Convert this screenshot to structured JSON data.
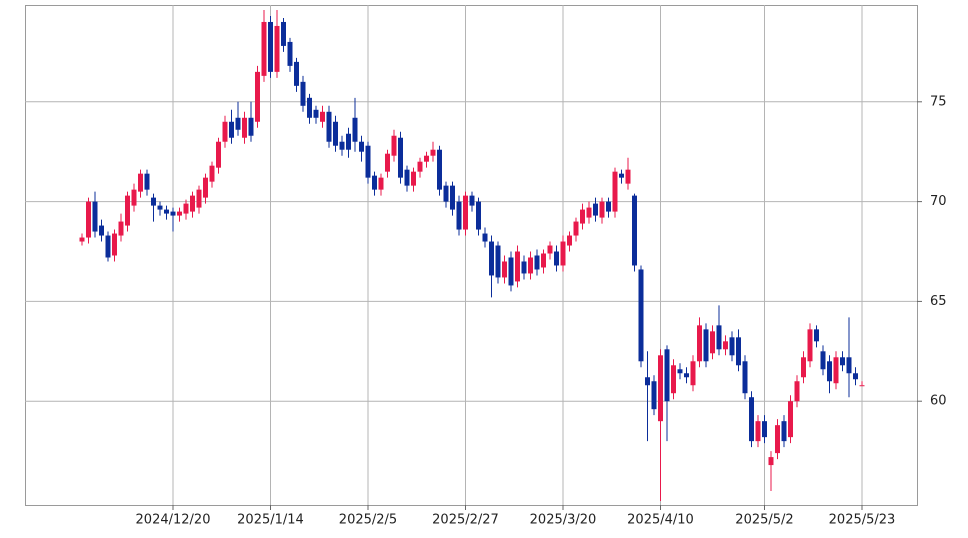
{
  "chart_data": {
    "type": "candlestick",
    "categories": [
      null,
      null,
      null,
      null,
      null,
      null,
      null,
      null,
      null,
      null,
      null,
      null,
      null,
      null,
      "2024/12/20",
      null,
      null,
      null,
      null,
      null,
      null,
      null,
      null,
      null,
      null,
      null,
      null,
      null,
      null,
      "2025/1/14",
      null,
      null,
      null,
      null,
      null,
      null,
      null,
      null,
      null,
      null,
      null,
      null,
      null,
      null,
      "2025/2/5",
      null,
      null,
      null,
      null,
      null,
      null,
      null,
      null,
      null,
      null,
      null,
      null,
      null,
      null,
      "2025/2/27",
      null,
      null,
      null,
      null,
      null,
      null,
      null,
      null,
      null,
      null,
      null,
      null,
      null,
      null,
      "2025/3/20",
      null,
      null,
      null,
      null,
      null,
      null,
      null,
      null,
      null,
      null,
      null,
      null,
      null,
      null,
      "2025/4/10",
      null,
      null,
      null,
      null,
      null,
      null,
      null,
      null,
      null,
      null,
      null,
      null,
      null,
      null,
      null,
      "2025/5/2",
      null,
      null,
      null,
      null,
      null,
      null,
      null,
      null,
      null,
      null,
      null,
      null,
      null,
      null,
      "2025/5/23"
    ],
    "open": [
      68.0,
      68.2,
      70.0,
      68.8,
      68.3,
      67.3,
      68.3,
      68.8,
      69.8,
      70.5,
      71.4,
      70.2,
      69.8,
      69.6,
      69.5,
      69.3,
      69.4,
      69.5,
      69.7,
      70.2,
      71.0,
      71.7,
      73.0,
      74.0,
      74.2,
      73.2,
      74.2,
      74.0,
      76.3,
      79.0,
      76.5,
      79.0,
      78.0,
      77.0,
      76.0,
      75.2,
      74.6,
      74.0,
      74.5,
      74.0,
      73.0,
      73.4,
      74.2,
      73.0,
      72.8,
      71.3,
      70.6,
      71.5,
      72.3,
      73.2,
      71.6,
      70.8,
      71.5,
      72.0,
      72.3,
      72.6,
      70.8,
      70.8,
      70.0,
      68.6,
      70.3,
      70.0,
      68.4,
      68.0,
      67.8,
      66.2,
      67.2,
      66.0,
      67.0,
      66.4,
      67.3,
      66.7,
      67.4,
      67.5,
      66.8,
      67.8,
      68.3,
      68.9,
      69.2,
      69.9,
      69.2,
      70.0,
      69.5,
      71.4,
      70.9,
      70.3,
      66.6,
      61.2,
      61.0,
      59.0,
      62.6,
      60.4,
      61.6,
      61.4,
      60.8,
      62.0,
      63.6,
      62.4,
      63.8,
      62.6,
      63.2,
      63.2,
      62.0,
      60.2,
      58.0,
      59.0,
      56.8,
      57.4,
      59.0,
      58.2,
      60.0,
      61.2,
      62.0,
      63.6,
      62.5,
      62.0,
      60.9,
      62.2,
      62.2,
      61.4,
      60.8
    ],
    "high": [
      68.4,
      70.2,
      70.5,
      69.1,
      68.5,
      68.6,
      69.4,
      70.5,
      70.9,
      71.6,
      71.6,
      70.4,
      70.0,
      69.8,
      69.7,
      69.7,
      70.1,
      70.5,
      70.8,
      71.4,
      72.0,
      73.2,
      74.3,
      74.6,
      75.0,
      74.5,
      75.0,
      76.8,
      79.6,
      79.3,
      79.6,
      79.2,
      78.2,
      77.2,
      76.3,
      75.4,
      74.8,
      74.8,
      74.8,
      74.3,
      73.3,
      73.7,
      75.2,
      73.3,
      73.0,
      71.5,
      71.4,
      72.6,
      73.6,
      73.5,
      71.8,
      71.7,
      72.2,
      72.5,
      73.0,
      72.8,
      71.0,
      71.0,
      70.3,
      70.5,
      70.5,
      70.2,
      68.7,
      68.3,
      68.0,
      67.3,
      67.5,
      67.8,
      67.3,
      67.5,
      67.6,
      67.6,
      68.0,
      67.8,
      68.3,
      68.5,
      69.2,
      69.9,
      70.0,
      70.2,
      70.2,
      70.2,
      71.7,
      71.6,
      72.2,
      70.4,
      66.8,
      62.5,
      61.3,
      62.6,
      62.8,
      62.1,
      61.9,
      61.7,
      62.3,
      64.2,
      63.9,
      63.8,
      64.8,
      63.3,
      63.5,
      63.6,
      62.3,
      60.5,
      59.3,
      59.3,
      57.5,
      59.1,
      59.3,
      60.3,
      61.3,
      62.5,
      63.9,
      63.8,
      62.8,
      62.3,
      62.5,
      62.5,
      64.2,
      61.7,
      61.0
    ],
    "low": [
      67.8,
      67.9,
      68.2,
      68.0,
      67.0,
      67.0,
      68.0,
      68.5,
      69.5,
      70.2,
      70.3,
      69.0,
      69.3,
      69.1,
      68.5,
      69.0,
      69.1,
      69.2,
      69.4,
      69.9,
      70.7,
      71.4,
      72.7,
      72.9,
      73.3,
      72.9,
      73.0,
      73.7,
      76.0,
      76.2,
      76.2,
      77.5,
      76.5,
      75.5,
      74.5,
      73.9,
      73.9,
      73.7,
      72.7,
      72.5,
      72.3,
      72.2,
      72.5,
      72.0,
      70.9,
      70.3,
      70.3,
      71.2,
      72.0,
      70.9,
      70.5,
      70.5,
      71.2,
      71.7,
      72.0,
      70.3,
      69.7,
      69.3,
      68.3,
      68.3,
      69.5,
      68.3,
      67.7,
      65.2,
      65.9,
      65.9,
      65.5,
      65.7,
      66.1,
      66.1,
      66.3,
      66.4,
      67.1,
      66.5,
      66.5,
      67.5,
      68.0,
      68.6,
      68.9,
      69.0,
      68.9,
      69.2,
      69.2,
      70.9,
      70.6,
      66.5,
      61.7,
      58.0,
      59.3,
      55.0,
      58.0,
      60.1,
      61.1,
      60.9,
      60.5,
      61.7,
      61.7,
      62.1,
      62.3,
      62.3,
      62.0,
      61.5,
      60.1,
      57.7,
      57.7,
      57.9,
      55.5,
      57.1,
      57.7,
      57.9,
      59.7,
      60.9,
      61.7,
      62.7,
      61.3,
      60.4,
      60.6,
      61.5,
      60.2,
      60.8,
      60.8
    ],
    "close": [
      68.2,
      70.0,
      68.5,
      68.3,
      67.2,
      68.4,
      69.0,
      70.3,
      70.6,
      71.4,
      70.6,
      69.8,
      69.6,
      69.4,
      69.3,
      69.5,
      69.9,
      70.3,
      70.6,
      71.2,
      71.8,
      73.0,
      74.0,
      73.2,
      73.6,
      74.2,
      73.3,
      76.5,
      79.0,
      76.5,
      78.8,
      77.8,
      76.8,
      75.8,
      74.8,
      74.2,
      74.2,
      74.5,
      73.0,
      72.8,
      72.6,
      72.6,
      73.0,
      72.5,
      71.2,
      70.6,
      71.2,
      72.4,
      73.3,
      71.2,
      70.8,
      71.5,
      72.0,
      72.3,
      72.6,
      70.6,
      70.0,
      69.6,
      68.6,
      70.3,
      69.8,
      68.6,
      68.0,
      66.3,
      66.2,
      67.0,
      65.8,
      67.5,
      66.4,
      67.2,
      66.6,
      67.4,
      67.8,
      66.8,
      68.0,
      68.3,
      69.0,
      69.6,
      69.7,
      69.3,
      70.0,
      69.5,
      71.5,
      71.2,
      71.6,
      66.8,
      62.0,
      60.8,
      59.6,
      62.3,
      60.0,
      61.8,
      61.4,
      61.2,
      62.0,
      63.8,
      62.0,
      63.5,
      62.6,
      63.0,
      62.3,
      61.8,
      60.4,
      58.0,
      59.0,
      58.2,
      57.2,
      58.8,
      58.0,
      60.0,
      61.0,
      62.2,
      63.6,
      63.0,
      61.6,
      61.0,
      62.2,
      61.8,
      61.4,
      61.1,
      60.8
    ],
    "up_color": "#e8194b",
    "down_color": "#0b2d9a",
    "ylim": [
      54.8,
      79.85
    ],
    "yticks": [
      60,
      65,
      70,
      75
    ],
    "grid": true
  }
}
